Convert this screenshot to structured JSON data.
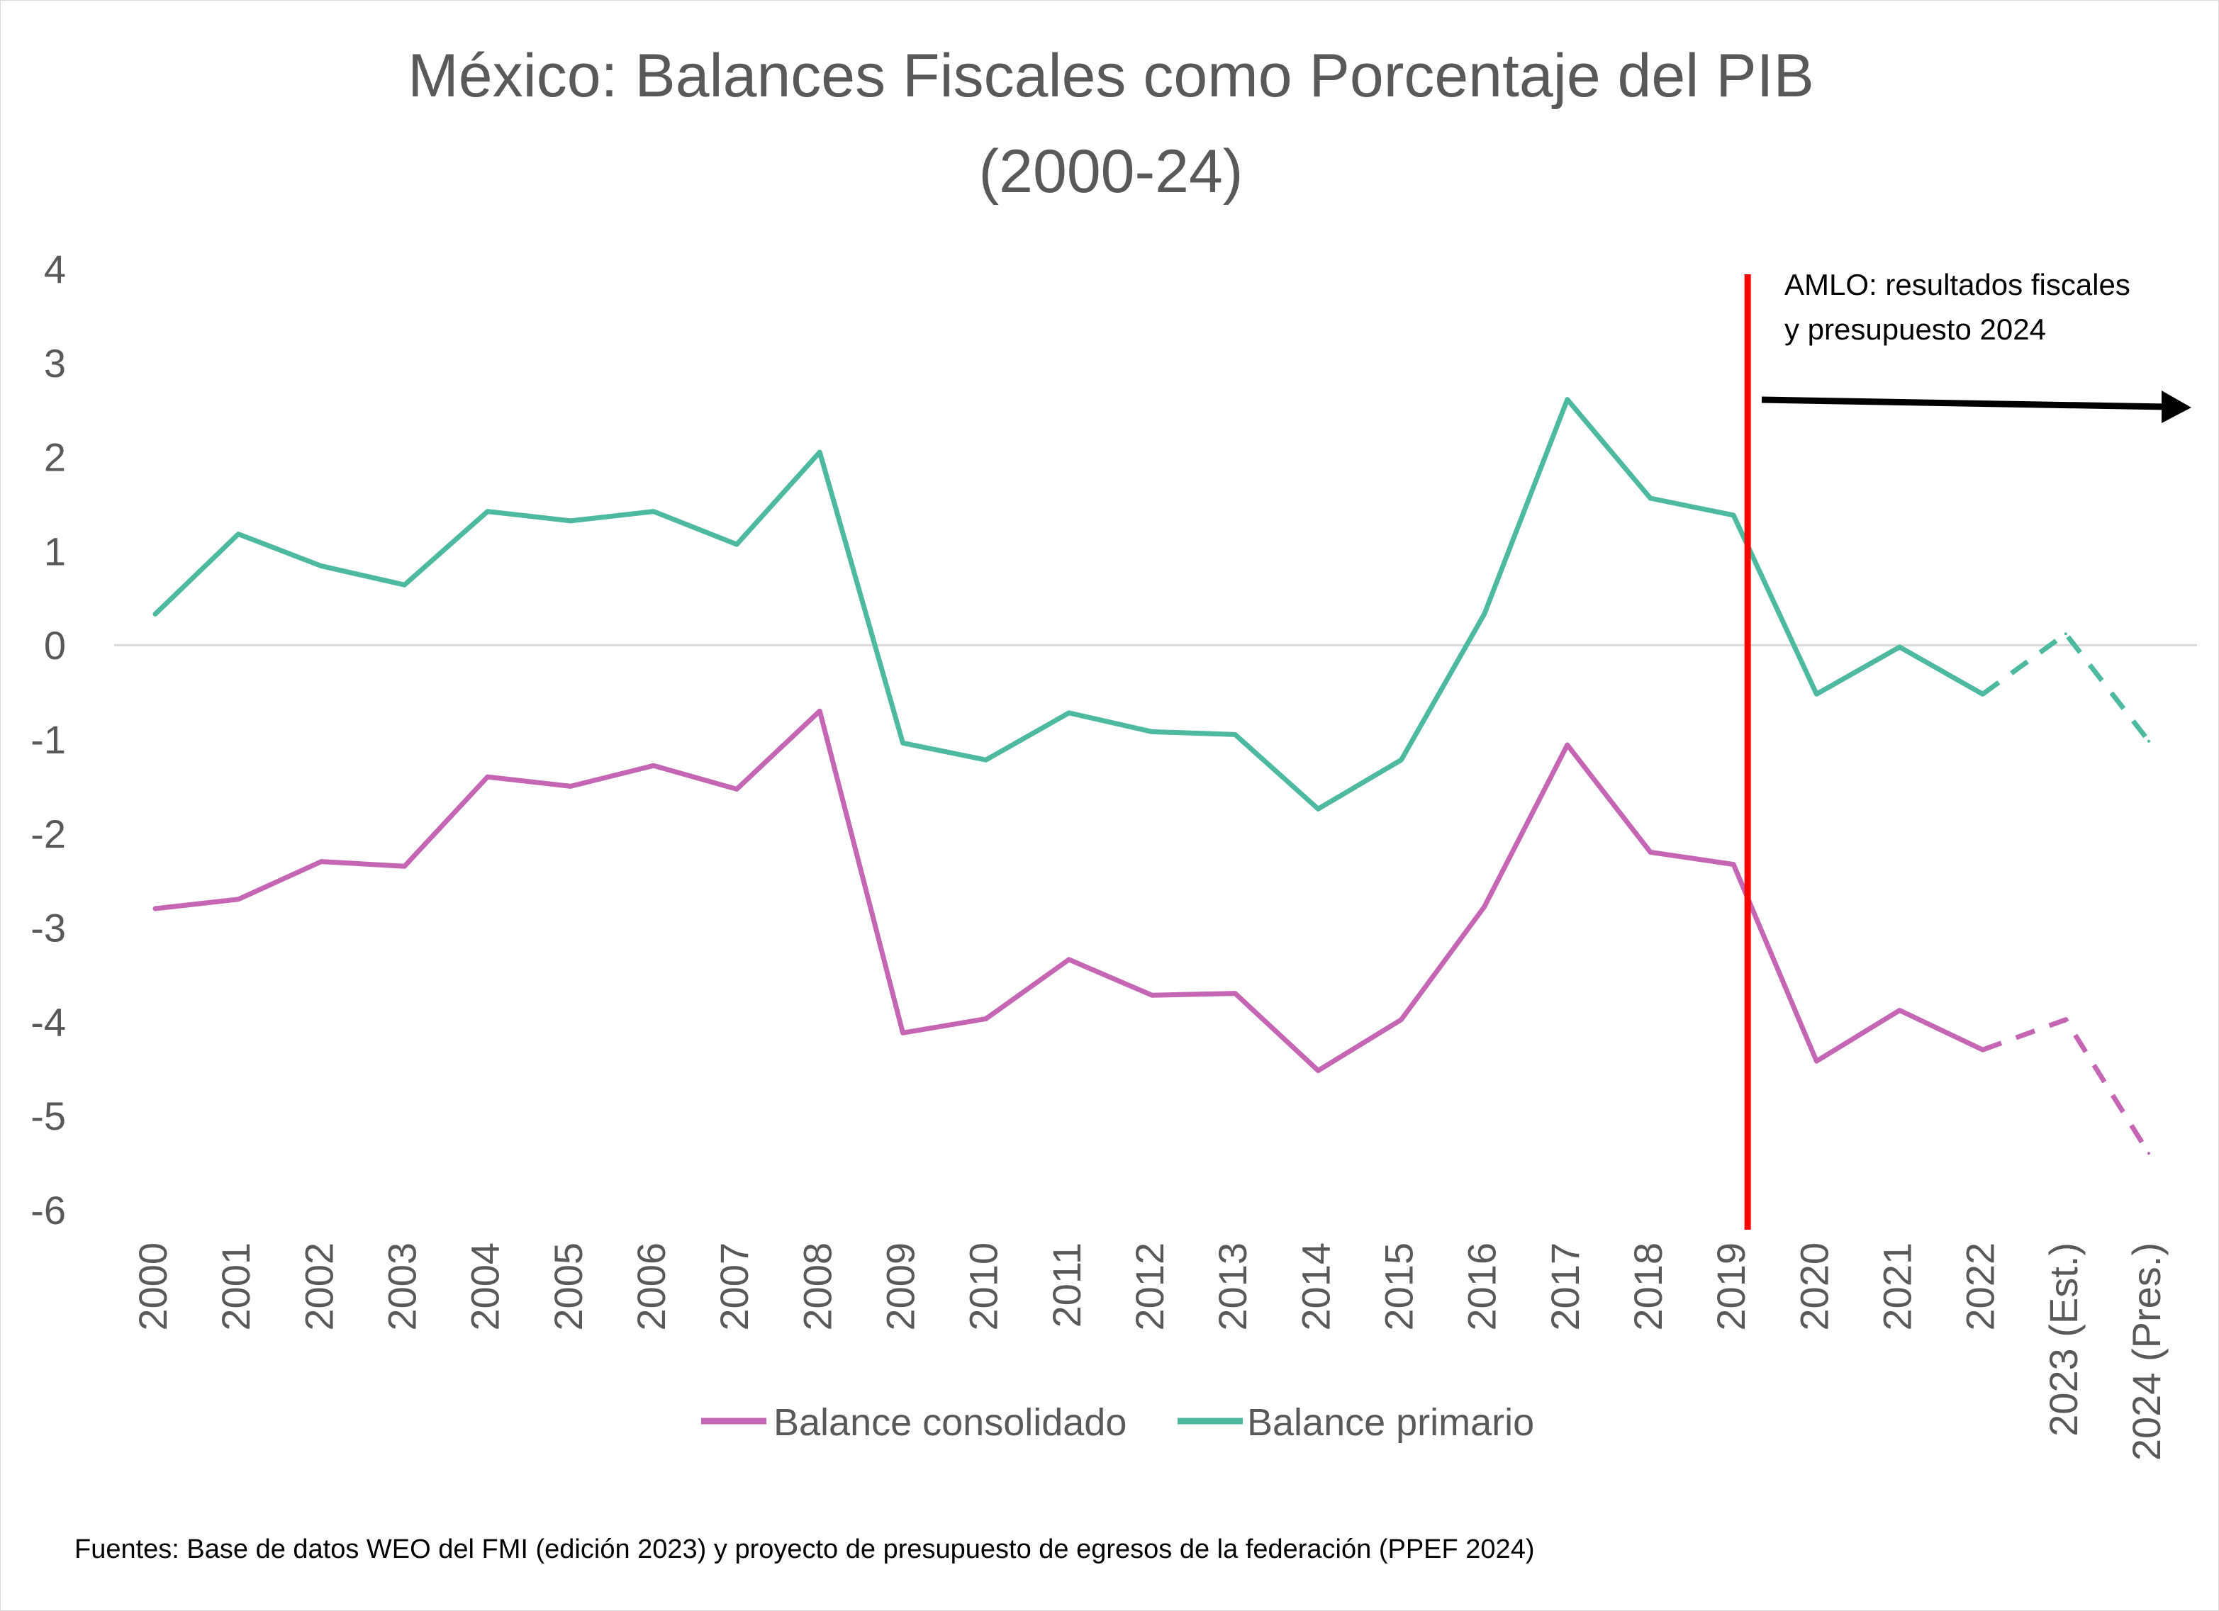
{
  "chart_data": {
    "type": "line",
    "title_lines": [
      "México: Balances Fiscales como Porcentaje del PIB",
      "(2000-24)"
    ],
    "categories": [
      "2000",
      "2001",
      "2002",
      "2003",
      "2004",
      "2005",
      "2006",
      "2007",
      "2008",
      "2009",
      "2010",
      "2011",
      "2012",
      "2013",
      "2014",
      "2015",
      "2016",
      "2017",
      "2018",
      "2019",
      "2020",
      "2021",
      "2022",
      "2023 (Est.)",
      "2024 (Pres.)"
    ],
    "ylim": [
      -6,
      4
    ],
    "yticks": [
      "4",
      "3",
      "2",
      "1",
      "0",
      "-1",
      "-2",
      "-3",
      "-4",
      "-5",
      "-6"
    ],
    "series": [
      {
        "name": "Balance consolidado",
        "color": "#c466b4",
        "values": [
          -2.8,
          -2.7,
          -2.3,
          -2.35,
          -1.4,
          -1.5,
          -1.28,
          -1.53,
          -0.7,
          -4.12,
          -3.97,
          -3.34,
          -3.72,
          -3.7,
          -4.52,
          -3.98,
          -2.78,
          -1.06,
          -2.2,
          -2.33,
          -4.42,
          -3.88,
          -4.3,
          -3.98,
          -5.4
        ],
        "dashed_from_index": 22
      },
      {
        "name": "Balance primario",
        "color": "#4dbaa0",
        "values": [
          0.33,
          1.18,
          0.84,
          0.64,
          1.42,
          1.32,
          1.42,
          1.07,
          2.05,
          -1.04,
          -1.22,
          -0.72,
          -0.92,
          -0.95,
          -1.74,
          -1.22,
          0.33,
          2.61,
          1.56,
          1.38,
          -0.52,
          -0.02,
          -0.52,
          0.12,
          -1.02
        ],
        "dashed_from_index": 22
      }
    ],
    "reference_line": {
      "category": "2019",
      "color": "#ff0000"
    },
    "annotation": {
      "lines": [
        "AMLO: resultados fiscales",
        "y presupuesto 2024"
      ]
    },
    "grid": false,
    "legend_position": "bottom"
  },
  "footer": {
    "source": "Fuentes: Base de datos WEO del FMI (edición 2023) y proyecto de presupuesto de egresos de la federación (PPEF 2024)"
  }
}
